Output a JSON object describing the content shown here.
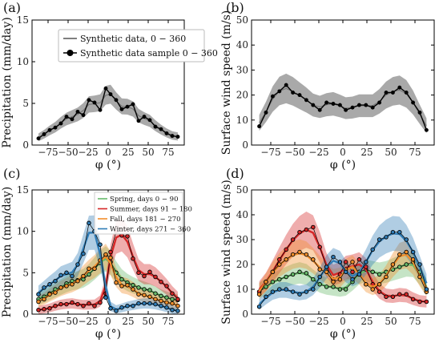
{
  "colors": {
    "synthetic": "#333333",
    "band_gray": "#9a9a9a",
    "spring": "#67b96a",
    "summer": "#d62728",
    "fall": "#f28e2b",
    "winter": "#2f7cb6"
  },
  "chart_data": [
    {
      "panel_label": "(a)",
      "type": "line",
      "ylabel": "Precipitation (mm/day)",
      "xlabel": "φ (°)",
      "xlim": [
        -95,
        95
      ],
      "ylim": [
        0,
        15
      ],
      "xticks": [
        -75,
        -50,
        -25,
        0,
        25,
        50,
        75
      ],
      "yticks": [
        0,
        5,
        10,
        15
      ],
      "legend": [
        "Synthetic data,  0 − 360",
        "Synthetic data sample 0 − 360"
      ],
      "x": [
        -87,
        -80,
        -73,
        -66,
        -59,
        -52,
        -45,
        -38,
        -31,
        -24,
        -17,
        -10,
        -3,
        3,
        10,
        17,
        24,
        31,
        38,
        45,
        52,
        59,
        66,
        73,
        80,
        87
      ],
      "series": [
        {
          "name": "Synthetic data sample 0 − 360",
          "values": [
            0.8,
            1.3,
            1.8,
            2.1,
            2.6,
            3.4,
            3.1,
            4.0,
            3.6,
            5.4,
            5.1,
            4.2,
            6.8,
            6.1,
            5.4,
            4.3,
            4.6,
            4.9,
            2.9,
            3.4,
            3.0,
            2.2,
            1.9,
            1.4,
            1.1,
            1.0
          ]
        }
      ]
    },
    {
      "panel_label": "(b)",
      "type": "line",
      "ylabel": "Surface wind speed (m/s)",
      "xlabel": "φ (°)",
      "xlim": [
        -95,
        95
      ],
      "ylim": [
        0,
        50
      ],
      "xticks": [
        -75,
        -50,
        -25,
        0,
        25,
        50,
        75
      ],
      "yticks": [
        0,
        10,
        20,
        30,
        40,
        50
      ],
      "x": [
        -87,
        -80,
        -73,
        -66,
        -59,
        -52,
        -45,
        -38,
        -31,
        -24,
        -17,
        -10,
        -3,
        3,
        10,
        17,
        24,
        31,
        38,
        45,
        52,
        59,
        66,
        73,
        80,
        87
      ],
      "series": [
        {
          "name": "",
          "values": [
            7.5,
            13,
            19.5,
            21.5,
            24,
            21,
            20,
            18,
            16,
            14,
            17,
            16.5,
            16,
            14,
            15,
            16,
            16,
            15,
            17,
            21,
            21,
            23,
            21,
            17,
            13,
            6
          ]
        }
      ]
    },
    {
      "panel_label": "(c)",
      "type": "line",
      "ylabel": "Precipitation (mm/day)",
      "xlabel": "φ (°)",
      "xlim": [
        -95,
        95
      ],
      "ylim": [
        0,
        15
      ],
      "xticks": [
        -75,
        -50,
        -25,
        0,
        25,
        50,
        75
      ],
      "yticks": [
        0,
        5,
        10,
        15
      ],
      "x": [
        -87,
        -80,
        -73,
        -66,
        -59,
        -52,
        -45,
        -38,
        -31,
        -24,
        -17,
        -10,
        -3,
        3,
        10,
        17,
        24,
        31,
        38,
        45,
        52,
        59,
        66,
        73,
        80,
        87
      ],
      "series": [
        {
          "name": "Spring, days 0 − 90",
          "values": [
            1.8,
            2.1,
            2.5,
            3.0,
            3.2,
            3.7,
            4.0,
            4.1,
            4.2,
            4.8,
            5.5,
            6.2,
            7.1,
            6.3,
            5.0,
            4.2,
            3.8,
            3.5,
            3.2,
            3.0,
            2.9,
            2.5,
            2.2,
            2.0,
            1.8,
            1.7
          ]
        },
        {
          "name": "Summer, days 91 − 180",
          "values": [
            0.5,
            0.6,
            0.7,
            1.0,
            1.2,
            1.2,
            1.4,
            1.2,
            1.0,
            1.3,
            1.0,
            1.4,
            2.5,
            7.5,
            10.0,
            9.5,
            9.4,
            6.7,
            5.0,
            4.6,
            5.1,
            4.5,
            3.9,
            3.4,
            2.5,
            1.8
          ]
        },
        {
          "name": "Fall, days 181 − 270",
          "values": [
            1.5,
            1.8,
            2.4,
            2.6,
            3.2,
            3.4,
            3.6,
            4.0,
            4.6,
            5.5,
            5.5,
            6.5,
            7.2,
            6.8,
            3.8,
            3.4,
            3.5,
            3.0,
            2.4,
            2.3,
            2.1,
            1.8,
            1.6,
            1.4,
            1.3,
            1.0
          ]
        },
        {
          "name": "Winter, days 271 − 360",
          "values": [
            2.4,
            3.2,
            3.6,
            4.0,
            4.7,
            5.0,
            4.6,
            6.0,
            7.3,
            11.0,
            10.0,
            8.4,
            2.0,
            0.7,
            0.4,
            0.8,
            1.0,
            1.0,
            1.3,
            1.3,
            1.3,
            1.2,
            1.0,
            0.8,
            0.5,
            0.4
          ]
        }
      ]
    },
    {
      "panel_label": "(d)",
      "type": "line",
      "ylabel": "Surface wind speed (m/s)",
      "xlabel": "φ (°)",
      "xlim": [
        -95,
        95
      ],
      "ylim": [
        0,
        50
      ],
      "xticks": [
        -75,
        -50,
        -25,
        0,
        25,
        50,
        75
      ],
      "yticks": [
        0,
        10,
        20,
        30,
        40,
        50
      ],
      "x": [
        -87,
        -80,
        -73,
        -66,
        -59,
        -52,
        -45,
        -38,
        -31,
        -24,
        -17,
        -10,
        -3,
        3,
        10,
        17,
        24,
        31,
        38,
        45,
        52,
        59,
        66,
        73,
        80,
        87
      ],
      "series": [
        {
          "name": "Spring",
          "values": [
            9,
            11,
            13,
            14,
            15,
            16,
            17,
            16.5,
            14,
            12,
            11,
            11,
            10,
            10,
            13,
            17,
            18,
            17,
            16,
            17,
            18,
            19,
            20,
            21,
            17,
            9
          ]
        },
        {
          "name": "Summer",
          "values": [
            9,
            13,
            17,
            22,
            26,
            30,
            33,
            34,
            35,
            27,
            19,
            14,
            16,
            21,
            17,
            22,
            19,
            12,
            9,
            7,
            7,
            8,
            8,
            6,
            5,
            5
          ]
        },
        {
          "name": "Fall",
          "values": [
            8,
            13,
            17,
            20,
            22,
            24,
            25,
            24,
            22,
            18,
            17,
            13,
            14,
            18,
            21,
            16,
            12,
            10,
            12,
            15,
            20,
            24,
            25,
            22,
            15,
            9
          ]
        },
        {
          "name": "Winter",
          "values": [
            3,
            7,
            9,
            10,
            10,
            9,
            8,
            9,
            10,
            15,
            19,
            23,
            21,
            17,
            14,
            16,
            21,
            26,
            30,
            31,
            33,
            33,
            30,
            25,
            20,
            10
          ]
        }
      ]
    }
  ]
}
